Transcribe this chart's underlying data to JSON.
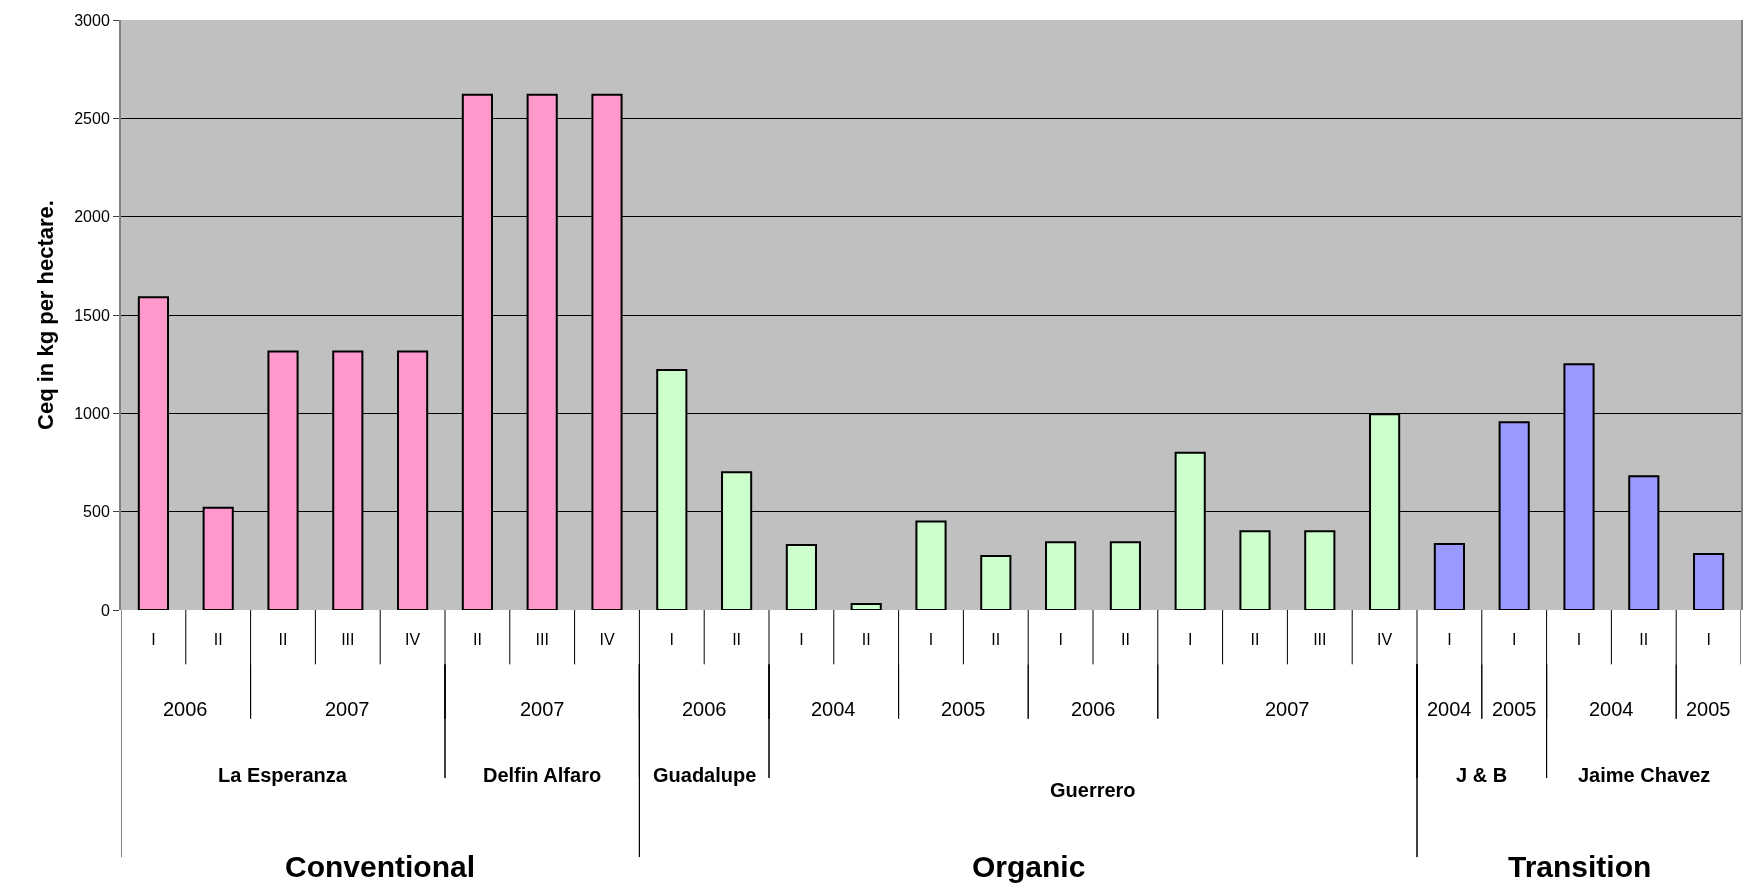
{
  "chart_data": {
    "type": "bar",
    "ylabel": "Ceq in kg per hectare.",
    "categories": [
      "I",
      "II",
      "II",
      "III",
      "IV",
      "II",
      "III",
      "IV",
      "I",
      "II",
      "I",
      "II",
      "I",
      "II",
      "I",
      "II",
      "I",
      "II",
      "III",
      "IV",
      "I",
      "I",
      "I",
      "II",
      "I"
    ],
    "values": [
      1590,
      520,
      1315,
      1315,
      1315,
      2620,
      2620,
      2620,
      1220,
      700,
      330,
      30,
      450,
      275,
      345,
      345,
      800,
      400,
      400,
      995,
      335,
      955,
      1250,
      680,
      285
    ],
    "colors": [
      "#ff99cc",
      "#ff99cc",
      "#ff99cc",
      "#ff99cc",
      "#ff99cc",
      "#ff99cc",
      "#ff99cc",
      "#ff99cc",
      "#ccffcc",
      "#ccffcc",
      "#ccffcc",
      "#ccffcc",
      "#ccffcc",
      "#ccffcc",
      "#ccffcc",
      "#ccffcc",
      "#ccffcc",
      "#ccffcc",
      "#ccffcc",
      "#ccffcc",
      "#9999ff",
      "#9999ff",
      "#9999ff",
      "#9999ff",
      "#9999ff"
    ],
    "ylim": [
      0,
      3000
    ],
    "yticks": [
      0,
      500,
      1000,
      1500,
      2000,
      2500,
      3000
    ],
    "grid": "y",
    "annotations": [
      "2006",
      "2007",
      "2007",
      "2006",
      "2004",
      "2005",
      "2006",
      "2007",
      "2004",
      "2005",
      "2004",
      "2005",
      "La Esperanza",
      "Delfin Alfaro",
      "Guadalupe",
      "Guerrero",
      "J & B",
      "Jaime Chavez",
      "Conventional",
      "Organic",
      "Transition"
    ]
  }
}
